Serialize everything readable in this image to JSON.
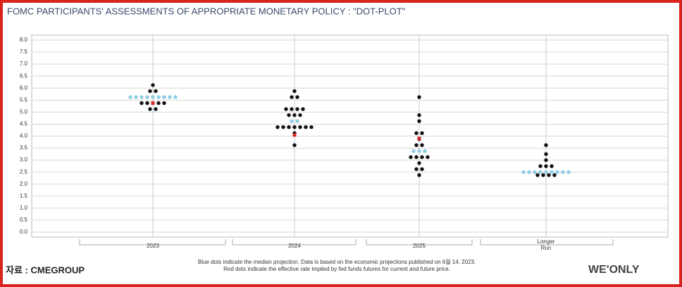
{
  "chart_data": {
    "type": "dotplot",
    "title": "FOMC PARTICIPANTS' ASSESSMENTS OF APPROPRIATE MONETARY POLICY : \"DOT-PLOT\"",
    "categories": [
      "2023",
      "2024",
      "2025",
      "Longer Run"
    ],
    "dots": [
      [
        6.125,
        5.875,
        5.875,
        5.375,
        5.375,
        5.375,
        5.375,
        5.125,
        5.125
      ],
      [
        5.875,
        5.625,
        5.625,
        5.125,
        5.125,
        5.125,
        5.125,
        4.875,
        4.875,
        4.875,
        4.375,
        4.375,
        4.375,
        4.375,
        4.375,
        4.375,
        4.375,
        4.125,
        3.625
      ],
      [
        5.625,
        4.875,
        4.625,
        4.125,
        4.125,
        3.875,
        3.625,
        3.625,
        3.125,
        3.125,
        3.125,
        3.125,
        2.875,
        2.625,
        2.625,
        2.375
      ],
      [
        3.625,
        3.25,
        3.0,
        2.75,
        2.75,
        2.75,
        2.375,
        2.375,
        2.375,
        2.375
      ]
    ],
    "median": [
      [
        5.625,
        5.625,
        5.625,
        5.625,
        5.625,
        5.625,
        5.625,
        5.625,
        5.625
      ],
      [
        4.625,
        4.625
      ],
      [
        3.375,
        3.375,
        3.375
      ],
      [
        2.5,
        2.5,
        2.5,
        2.5,
        2.5,
        2.5,
        2.5,
        2.5,
        2.5
      ]
    ],
    "red": [
      5.375,
      4.05,
      3.9,
      null
    ],
    "dot_color": "#111111",
    "median_color": "#8fcde6",
    "red_color": "#d62728",
    "ylim": [
      0,
      8
    ],
    "yticks": [
      {
        "value": 0,
        "label": "0.0"
      },
      {
        "value": 0.5,
        "label": "0.5"
      },
      {
        "value": 1,
        "label": "1.0"
      },
      {
        "value": 1.5,
        "label": "1.5"
      },
      {
        "value": 2,
        "label": "2.0"
      },
      {
        "value": 2.5,
        "label": "2.5"
      },
      {
        "value": 3,
        "label": "3.0"
      },
      {
        "value": 3.5,
        "label": "3.5"
      },
      {
        "value": 4,
        "label": "4.0"
      },
      {
        "value": 4.5,
        "label": "4.5"
      },
      {
        "value": 5,
        "label": "5.0"
      },
      {
        "value": 5.5,
        "label": "5.5"
      },
      {
        "value": 6,
        "label": "6.0"
      },
      {
        "value": 6.5,
        "label": "6.5"
      },
      {
        "value": 7,
        "label": "7.0"
      },
      {
        "value": 7.5,
        "label": "7.5"
      },
      {
        "value": 8,
        "label": "8.0"
      }
    ],
    "grid": true,
    "notes": [
      "Blue dots indicate the median projection. Data is based on the economic projections published on 6월 14, 2023.",
      "Red dots indicate the effective rate implied by fed funds futures for current and future price."
    ],
    "source": "자료 : CMEGROUP",
    "watermark": "WE'ONLY"
  }
}
